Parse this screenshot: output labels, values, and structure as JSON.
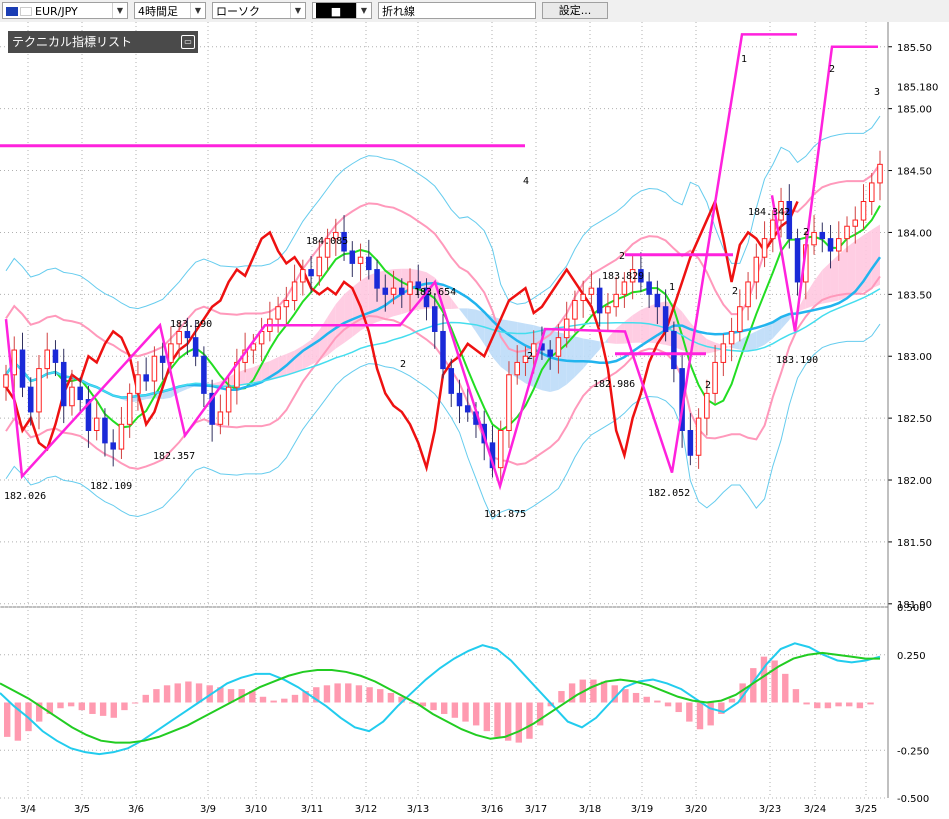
{
  "toolbar": {
    "symbol": "EUR/JPY",
    "timeframe": "4時間足",
    "chart_type": "ローソク",
    "style_glyph": "■",
    "line_mode": "折れ線",
    "settings_label": "設定..."
  },
  "indicator_panel": {
    "title": "テクニカル指標リスト"
  },
  "colors": {
    "bull": "#ff2020",
    "bear": "#1a2ad8",
    "bollinger_outer": "#66ccee",
    "bollinger_mid": "#ff99bb",
    "ma_green": "#22dd22",
    "ma_blue": "#22b4ee",
    "ma_cyan": "#44ddee",
    "red_line": "#ee1111",
    "zigzag": "#ff22dd",
    "ichimoku_pos": "#ffc8e0",
    "ichimoku_neg": "#bcdcf8",
    "macd_hist": "#ff9ab0",
    "macd_signal": "#22cc22",
    "macd_line": "#22ccee"
  },
  "chart_data": [
    {
      "type": "candlestick",
      "title": "",
      "symbol": "EUR/JPY",
      "timeframe": "4時間足",
      "ylim": [
        180.95,
        185.7
      ],
      "y_ticks": [
        "185.50",
        "185.00",
        "184.50",
        "184.00",
        "183.50",
        "183.00",
        "182.50",
        "182.00",
        "181.50",
        "181.00"
      ],
      "current_price_label": "185.180",
      "current_price": 185.18,
      "x_ticks": [
        "3/4",
        "3/5",
        "3/6",
        "3/9",
        "3/10",
        "3/11",
        "3/12",
        "3/13",
        "3/16",
        "3/17",
        "3/18",
        "3/19",
        "3/20",
        "3/23",
        "3/24",
        "3/25"
      ],
      "annotations": [
        {
          "text": "182.026",
          "value": 182.026,
          "date": "3/4"
        },
        {
          "text": "182.109",
          "value": 182.109,
          "date": "3/5"
        },
        {
          "text": "183.390",
          "value": 183.39,
          "date": "3/6"
        },
        {
          "text": "182.357",
          "value": 182.357,
          "date": "3/6"
        },
        {
          "text": "184.085",
          "value": 184.085,
          "date": "3/11"
        },
        {
          "text": "183.654",
          "value": 183.654,
          "date": "3/13"
        },
        {
          "text": "181.875",
          "value": 181.875,
          "date": "3/16"
        },
        {
          "text": "183.829",
          "value": 183.829,
          "date": "3/19"
        },
        {
          "text": "182.986",
          "value": 182.986,
          "date": "3/18"
        },
        {
          "text": "182.052",
          "value": 182.052,
          "date": "3/20"
        },
        {
          "text": "184.342",
          "value": 184.342,
          "date": "3/23"
        },
        {
          "text": "183.190",
          "value": 183.19,
          "date": "3/24"
        }
      ],
      "wave_labels": [
        "1",
        "2",
        "3",
        "4",
        "2",
        "1",
        "2",
        "2",
        "2",
        "2",
        "2"
      ],
      "closes": [
        182.85,
        183.05,
        182.75,
        182.55,
        182.9,
        183.05,
        182.95,
        182.6,
        182.75,
        182.65,
        182.4,
        182.5,
        182.3,
        182.25,
        182.45,
        182.7,
        182.85,
        182.8,
        183.0,
        182.95,
        183.1,
        183.2,
        183.15,
        183.0,
        182.7,
        182.45,
        182.55,
        182.75,
        182.95,
        183.05,
        183.1,
        183.2,
        183.3,
        183.4,
        183.45,
        183.6,
        183.7,
        183.65,
        183.8,
        183.95,
        184.0,
        183.85,
        183.75,
        183.8,
        183.7,
        183.55,
        183.5,
        183.55,
        183.5,
        183.6,
        183.55,
        183.4,
        183.2,
        182.9,
        182.7,
        182.6,
        182.55,
        182.45,
        182.3,
        182.1,
        182.4,
        182.85,
        182.95,
        183.0,
        183.1,
        183.05,
        183.0,
        183.15,
        183.3,
        183.45,
        183.5,
        183.55,
        183.35,
        183.4,
        183.5,
        183.6,
        183.7,
        183.6,
        183.5,
        183.4,
        183.2,
        182.9,
        182.4,
        182.2,
        182.5,
        182.7,
        182.95,
        183.1,
        183.2,
        183.4,
        183.6,
        183.8,
        183.95,
        184.1,
        184.25,
        183.95,
        183.6,
        183.9,
        184.0,
        183.95,
        183.85,
        183.95,
        184.05,
        184.1,
        184.25,
        184.4,
        184.55
      ]
    },
    {
      "type": "bar",
      "title": "",
      "y_ticks": [
        "0.500",
        "0.250",
        "-0.250",
        "-0.500"
      ],
      "ylim": [
        -0.5,
        0.5
      ],
      "histogram": [
        -0.18,
        -0.2,
        -0.15,
        -0.1,
        -0.06,
        -0.03,
        -0.02,
        -0.04,
        -0.06,
        -0.07,
        -0.08,
        -0.04,
        0.0,
        0.04,
        0.07,
        0.09,
        0.1,
        0.11,
        0.1,
        0.09,
        0.08,
        0.07,
        0.07,
        0.06,
        0.03,
        0.01,
        0.02,
        0.04,
        0.06,
        0.08,
        0.09,
        0.1,
        0.1,
        0.09,
        0.08,
        0.07,
        0.05,
        0.03,
        0.0,
        -0.02,
        -0.04,
        -0.06,
        -0.08,
        -0.1,
        -0.12,
        -0.15,
        -0.18,
        -0.2,
        -0.21,
        -0.19,
        -0.12,
        -0.02,
        0.06,
        0.1,
        0.12,
        0.12,
        0.11,
        0.09,
        0.07,
        0.05,
        0.03,
        0.01,
        -0.02,
        -0.05,
        -0.1,
        -0.14,
        -0.12,
        -0.06,
        0.02,
        0.1,
        0.18,
        0.24,
        0.22,
        0.15,
        0.07,
        -0.01,
        -0.03,
        -0.03,
        -0.02,
        -0.02,
        -0.03,
        -0.01
      ],
      "macd": [
        0.05,
        -0.02,
        -0.08,
        -0.15,
        -0.2,
        -0.24,
        -0.26,
        -0.27,
        -0.26,
        -0.24,
        -0.2,
        -0.15,
        -0.1,
        -0.05,
        0.0,
        0.05,
        0.1,
        0.13,
        0.15,
        0.15,
        0.12,
        0.08,
        0.03,
        -0.02,
        -0.08,
        -0.13,
        -0.15,
        -0.1,
        -0.02,
        0.05,
        0.12,
        0.18,
        0.23,
        0.27,
        0.3,
        0.28,
        0.22,
        0.14,
        0.06,
        -0.02,
        -0.1,
        -0.13,
        -0.08,
        0.0,
        0.08,
        0.11,
        0.12,
        0.1,
        0.07,
        0.02,
        -0.03,
        -0.05,
        0.0,
        0.1,
        0.2,
        0.28,
        0.31,
        0.29,
        0.25,
        0.22,
        0.21,
        0.22,
        0.24
      ],
      "signal": [
        0.1,
        0.06,
        0.02,
        -0.03,
        -0.08,
        -0.13,
        -0.17,
        -0.2,
        -0.21,
        -0.21,
        -0.2,
        -0.18,
        -0.15,
        -0.12,
        -0.08,
        -0.04,
        0.0,
        0.04,
        0.08,
        0.11,
        0.14,
        0.16,
        0.17,
        0.17,
        0.16,
        0.14,
        0.11,
        0.07,
        0.03,
        -0.01,
        -0.06,
        -0.1,
        -0.14,
        -0.17,
        -0.19,
        -0.18,
        -0.15,
        -0.11,
        -0.06,
        -0.01,
        0.04,
        0.08,
        0.11,
        0.12,
        0.11,
        0.09,
        0.06,
        0.03,
        0.01,
        0.0,
        0.01,
        0.04,
        0.09,
        0.14,
        0.19,
        0.23,
        0.25,
        0.26,
        0.25,
        0.24,
        0.23,
        0.23
      ]
    }
  ]
}
